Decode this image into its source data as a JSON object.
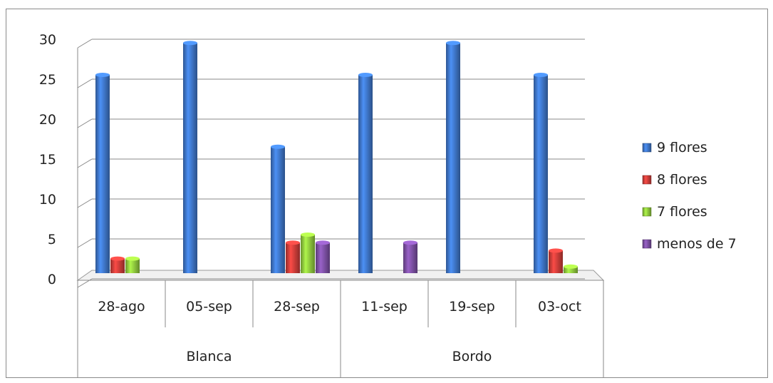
{
  "chart_data": {
    "type": "bar",
    "title": "",
    "xlabel": "",
    "ylabel": "",
    "ylim": [
      0,
      30
    ],
    "yticks": [
      0,
      5,
      10,
      15,
      20,
      25,
      30
    ],
    "grid": true,
    "legend_position": "right",
    "categories": [
      "28-ago",
      "05-sep",
      "28-sep",
      "11-sep",
      "19-sep",
      "03-oct"
    ],
    "groups": [
      {
        "label": "Blanca",
        "categories": [
          "28-ago",
          "05-sep",
          "28-sep"
        ]
      },
      {
        "label": "Bordo",
        "categories": [
          "11-sep",
          "19-sep",
          "03-oct"
        ]
      }
    ],
    "series": [
      {
        "name": "9 flores",
        "color": "#3d73c4",
        "values": [
          25,
          29,
          16,
          25,
          29,
          25
        ]
      },
      {
        "name": "8 flores",
        "color": "#c83c38",
        "values": [
          2,
          0,
          4,
          0,
          0,
          3
        ]
      },
      {
        "name": "7 flores",
        "color": "#8cc43c",
        "values": [
          2,
          0,
          5,
          0,
          0,
          1
        ]
      },
      {
        "name": "menos de 7",
        "color": "#7a4ea0",
        "values": [
          0,
          0,
          4,
          4,
          0,
          0
        ]
      }
    ]
  }
}
